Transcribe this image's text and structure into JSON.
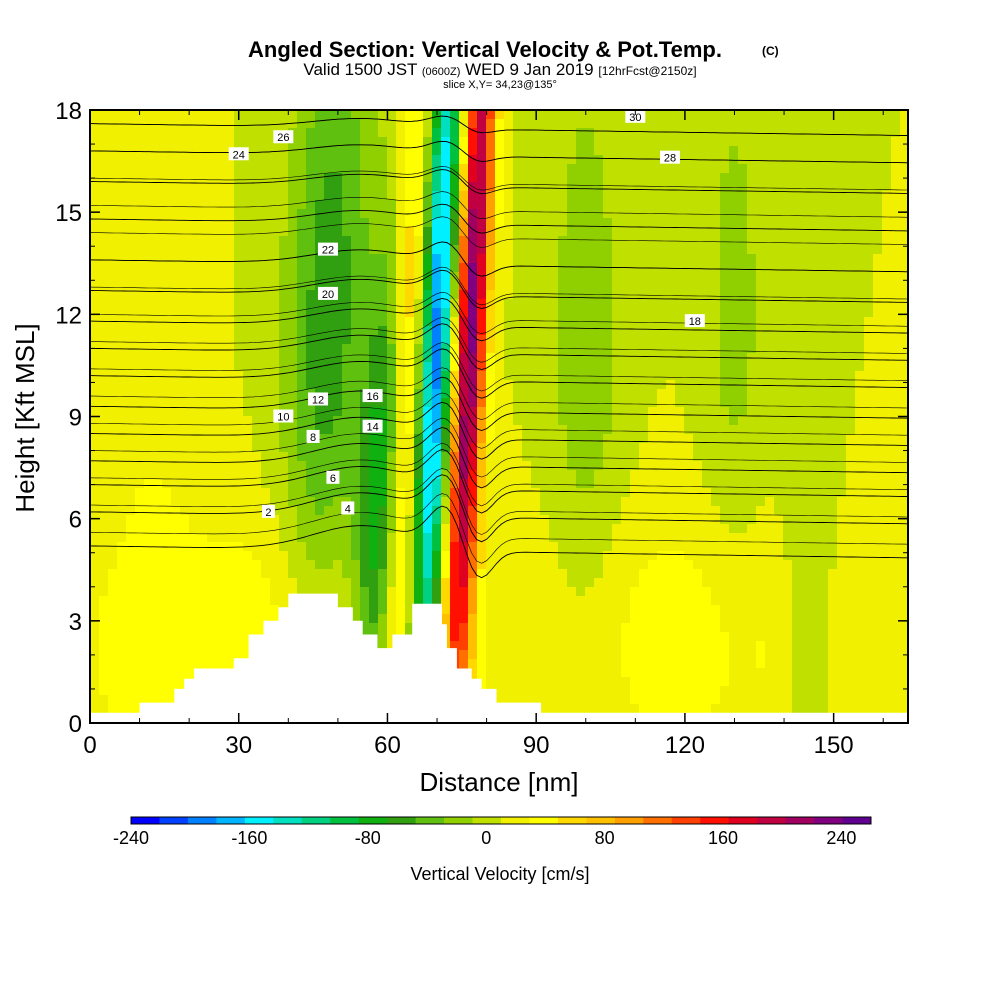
{
  "chart_data": {
    "type": "heatmap",
    "title": "Angled Section: Vertical Velocity & Pot.Temp.",
    "title_mark": "(C)",
    "subtitle": {
      "valid": "Valid 1500 JST",
      "utc": "(0600Z)",
      "date": "WED 9 Jan 2019",
      "fcst": "[12hrFcst@2150z]"
    },
    "slice": "slice X,Y= 34,23@135°",
    "xlabel": "Distance [nm]",
    "ylabel": "Height [Kft MSL]",
    "xlim": [
      0,
      165
    ],
    "ylim": [
      0,
      18
    ],
    "x_ticks": [
      "0",
      "30",
      "60",
      "90",
      "120",
      "150"
    ],
    "x_tick_values": [
      0,
      30,
      60,
      90,
      120,
      150
    ],
    "y_ticks": [
      "0",
      "3",
      "6",
      "9",
      "12",
      "15",
      "18"
    ],
    "y_tick_values": [
      0,
      3,
      6,
      9,
      12,
      15,
      18
    ],
    "colorbar": {
      "label": "Vertical Velocity [cm/s]",
      "min": -240,
      "max": 260,
      "tick_labels": [
        "-240",
        "-160",
        "-80",
        "0",
        "80",
        "160",
        "240"
      ],
      "tick_values": [
        -240,
        -160,
        -80,
        0,
        80,
        160,
        240
      ],
      "colors": [
        "#0000ff",
        "#0040ff",
        "#0080ff",
        "#00b4ff",
        "#00f0ff",
        "#00e0c0",
        "#00d080",
        "#00c040",
        "#10b010",
        "#30a010",
        "#60c010",
        "#90d000",
        "#c0e000",
        "#f0f000",
        "#ffff00",
        "#ffd800",
        "#ffc000",
        "#ffa000",
        "#ff7000",
        "#ff4000",
        "#ff1000",
        "#e00020",
        "#c00040",
        "#a00060",
        "#800080",
        "#600090"
      ]
    },
    "velocity_features": [
      {
        "x": 48,
        "y": 12,
        "sx": 6,
        "sy": 7,
        "value": -70,
        "tilt": 0.22
      },
      {
        "x": 58,
        "y": 6,
        "sx": 3,
        "sy": 5,
        "value": -90,
        "tilt": 0.3
      },
      {
        "x": 70,
        "y": 11,
        "sx": 2.2,
        "sy": 9,
        "value": -200,
        "tilt": 0.3
      },
      {
        "x": 77,
        "y": 12,
        "sx": 2.2,
        "sy": 9,
        "value": 220,
        "tilt": 0.3
      },
      {
        "x": 64,
        "y": 11,
        "sx": 2,
        "sy": 7,
        "value": 60,
        "tilt": 0.25
      },
      {
        "x": 100,
        "y": 10,
        "sx": 6,
        "sy": 8,
        "value": -30,
        "tilt": 0
      },
      {
        "x": 130,
        "y": 12,
        "sx": 5,
        "sy": 7,
        "value": -25,
        "tilt": 0
      },
      {
        "x": 145,
        "y": 4,
        "sx": 4,
        "sy": 5,
        "value": -30,
        "tilt": 0
      },
      {
        "x": 30,
        "y": 2,
        "sx": 25,
        "sy": 3,
        "value": 35,
        "tilt": 0
      },
      {
        "x": 120,
        "y": 2.5,
        "sx": 30,
        "sy": 3,
        "value": 30,
        "tilt": 0
      },
      {
        "x": 12,
        "y": 10,
        "sx": 6,
        "sy": 6,
        "value": 15,
        "tilt": 0
      }
    ],
    "terrain": [
      [
        0,
        0.3
      ],
      [
        10,
        0.3
      ],
      [
        10,
        0.6
      ],
      [
        17,
        0.6
      ],
      [
        17,
        1.0
      ],
      [
        19,
        1.0
      ],
      [
        19,
        1.3
      ],
      [
        21,
        1.3
      ],
      [
        21,
        1.6
      ],
      [
        29,
        1.6
      ],
      [
        29,
        1.9
      ],
      [
        32,
        1.9
      ],
      [
        32,
        2.6
      ],
      [
        35,
        2.6
      ],
      [
        35,
        3.0
      ],
      [
        38,
        3.0
      ],
      [
        38,
        3.4
      ],
      [
        40,
        3.4
      ],
      [
        40,
        3.8
      ],
      [
        50,
        3.8
      ],
      [
        50,
        3.4
      ],
      [
        53,
        3.4
      ],
      [
        53,
        3.0
      ],
      [
        55,
        3.0
      ],
      [
        55,
        2.6
      ],
      [
        58,
        2.6
      ],
      [
        58,
        2.2
      ],
      [
        61,
        2.2
      ],
      [
        61,
        2.6
      ],
      [
        65,
        2.6
      ],
      [
        65,
        3.5
      ],
      [
        71,
        3.5
      ],
      [
        71,
        2.9
      ],
      [
        72,
        2.9
      ],
      [
        72,
        2.2
      ],
      [
        74,
        2.2
      ],
      [
        74,
        1.6
      ],
      [
        77,
        1.6
      ],
      [
        77,
        1.3
      ],
      [
        79,
        1.3
      ],
      [
        79,
        1.0
      ],
      [
        82,
        1.0
      ],
      [
        82,
        0.6
      ],
      [
        91,
        0.6
      ],
      [
        91,
        0.3
      ],
      [
        165,
        0.3
      ]
    ],
    "theta_contours": [
      {
        "label": "2",
        "base": 5.2,
        "lx": 36,
        "ly": 6.2
      },
      {
        "label": "4",
        "base": 6.2,
        "lx": 52,
        "ly": 6.3
      },
      {
        "label": "6",
        "base": 7.0,
        "lx": 49,
        "ly": 7.2
      },
      {
        "label": "8",
        "base": 7.7,
        "lx": 45,
        "ly": 8.4
      },
      {
        "label": "10",
        "base": 8.5,
        "lx": 39,
        "ly": 9.0
      },
      {
        "label": "12",
        "base": 9.3,
        "lx": 46,
        "ly": 9.5
      },
      {
        "label": "14",
        "base": 10.2,
        "lx": 57,
        "ly": 8.7
      },
      {
        "label": "16",
        "base": 11.0,
        "lx": 57,
        "ly": 9.6
      },
      {
        "label": "18",
        "base": 11.8,
        "lx": 122,
        "ly": 11.8
      },
      {
        "label": "20",
        "base": 12.7,
        "lx": 48,
        "ly": 12.6
      },
      {
        "label": "22",
        "base": 13.6,
        "lx": 48,
        "ly": 13.9
      },
      {
        "label": "24",
        "base": 14.8,
        "lx": 30,
        "ly": 16.7
      },
      {
        "label": "26",
        "base": 15.9,
        "lx": 39,
        "ly": 17.2
      },
      {
        "label": "28",
        "base": 16.8,
        "lx": 117,
        "ly": 16.6
      },
      {
        "label": "30",
        "base": 17.6,
        "lx": 110,
        "ly": 17.8
      }
    ]
  }
}
